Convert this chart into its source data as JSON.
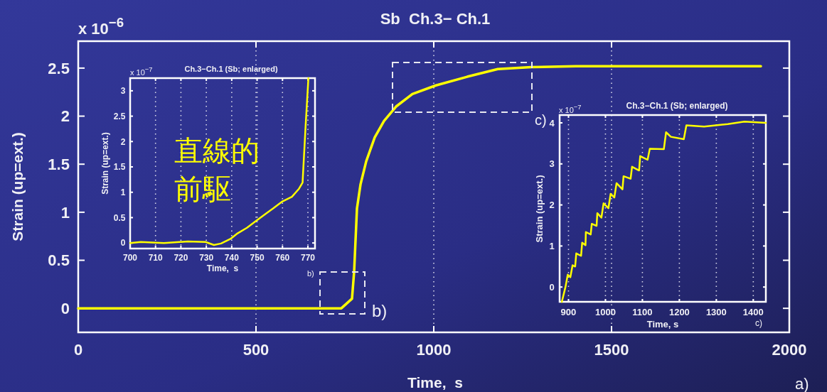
{
  "chart_data": [
    {
      "type": "line",
      "title": "Sb  Ch.3− Ch.1",
      "xlabel": "Time,  s",
      "ylabel": "Strain (up=ext.)",
      "xlim": [
        0,
        2000
      ],
      "ylim": [
        -0.25,
        2.78
      ],
      "xticks": [
        0,
        500,
        1000,
        1500,
        2000
      ],
      "yticks": [
        0,
        0.5,
        1,
        1.5,
        2,
        2.5
      ],
      "grid": "x",
      "series": [
        {
          "color": "#ffff00",
          "x": [
            0,
            200,
            400,
            600,
            700,
            740,
            770,
            776,
            784,
            794,
            810,
            834,
            860,
            894,
            940,
            1006,
            1094,
            1180,
            1274,
            1400,
            1600,
            1800,
            1920
          ],
          "values": [
            0,
            0,
            0,
            0,
            0,
            0,
            0.1,
            0.38,
            1.04,
            1.29,
            1.53,
            1.78,
            1.95,
            2.1,
            2.23,
            2.32,
            2.41,
            2.49,
            2.51,
            2.52,
            2.52,
            2.52,
            2.52
          ]
        }
      ],
      "annotations": [
        "x 10$^{−6}$",
        "b)",
        "c)",
        "a)"
      ]
    },
    {
      "type": "line",
      "title": "Ch.3−Ch.1 (Sb; enlarged)",
      "xlabel": "Time,  s",
      "ylabel": "Strain (up=ext.)",
      "xlim": [
        700,
        772.8
      ],
      "ylim": [
        -0.11,
        3.25
      ],
      "xticks": [
        700,
        710,
        720,
        730,
        740,
        750,
        760,
        770
      ],
      "yticks": [
        0,
        0.5,
        1,
        1.5,
        2,
        2.5,
        3
      ],
      "grid": "x",
      "series": [
        {
          "color": "#ffff00",
          "x": [
            700,
            704.2,
            713.3,
            722.7,
            729.7,
            733,
            735.8,
            739.5,
            742.3,
            746,
            749.7,
            753.5,
            756.3,
            760,
            763.7,
            766.5,
            767.9,
            769.1,
            770.2
          ],
          "values": [
            0,
            0.02,
            0,
            0.03,
            0.02,
            -0.04,
            -0.01,
            0.08,
            0.19,
            0.3,
            0.44,
            0.58,
            0.68,
            0.82,
            0.91,
            1.07,
            1.19,
            2.31,
            3.25
          ]
        }
      ],
      "annotations": [
        "x 10$^{−7}$",
        "直線的",
        "前駆",
        "b)"
      ]
    },
    {
      "type": "line",
      "title": "Ch.3−Ch.1 (Sb; enlarged)",
      "xlabel": "Time, s",
      "ylabel": "Strain (up=ext.)",
      "xlim": [
        876,
        1434
      ],
      "ylim": [
        -0.36,
        4.19
      ],
      "xticks": [
        900,
        1000,
        1100,
        1200,
        1300,
        1400
      ],
      "yticks": [
        0,
        1,
        2,
        3,
        4
      ],
      "grid": "x",
      "series": [
        {
          "color": "#ffff00",
          "x": [
            882,
            892,
            898,
            905,
            911,
            918,
            921,
            934,
            937,
            946,
            947,
            960,
            963,
            976,
            978,
            989,
            995,
            1008,
            1014,
            1024,
            1030,
            1046,
            1049,
            1068,
            1072,
            1091,
            1094,
            1114,
            1120,
            1158,
            1164,
            1177,
            1212,
            1219,
            1267,
            1331,
            1376,
            1434
          ],
          "values": [
            -0.36,
            0.01,
            0.3,
            0.24,
            0.53,
            0.5,
            0.82,
            0.76,
            1.08,
            1.02,
            1.34,
            1.28,
            1.54,
            1.49,
            1.8,
            1.69,
            2.04,
            1.92,
            2.27,
            2.18,
            2.53,
            2.38,
            2.7,
            2.64,
            2.93,
            2.84,
            3.19,
            3.1,
            3.37,
            3.36,
            3.77,
            3.66,
            3.6,
            3.94,
            3.91,
            3.97,
            4.03,
            4.0
          ]
        }
      ],
      "annotations": [
        "x 10$^{−7}$",
        "c)"
      ]
    }
  ]
}
